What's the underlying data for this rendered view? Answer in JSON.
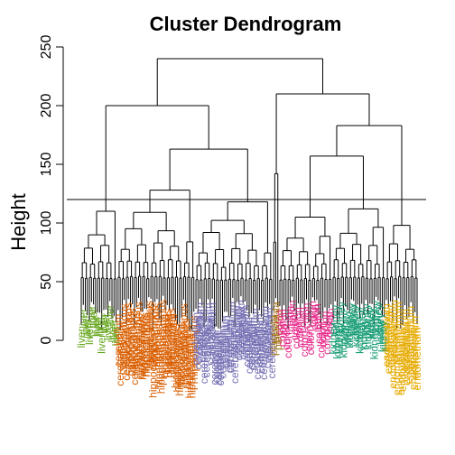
{
  "chart_data": {
    "type": "dendrogram",
    "title": "Cluster Dendrogram",
    "ylabel": "Height",
    "ylim": [
      0,
      250
    ],
    "yticks": [
      0,
      50,
      100,
      150,
      200,
      250
    ],
    "cut_height": 120,
    "groups": [
      {
        "tissue": "liver",
        "color": "#66a61e",
        "leaves": 18,
        "merge_height": 110,
        "labels": [
          "liver",
          "liver",
          "liver",
          "liver",
          "liver",
          "liver",
          "liver",
          "liver",
          "liver",
          "liver",
          "liver",
          "liver",
          "liver",
          "liver",
          "liver",
          "liver",
          "liver",
          "liver"
        ]
      },
      {
        "tissue": "cerebellum",
        "color": "#d95f02",
        "leaves": 38,
        "merge_height": 128,
        "labels": [
          "cerebellum",
          "cerebellum",
          "cerebellum",
          "hippocampus",
          "cerebellum",
          "hippocampus",
          "hippocampus",
          "hippocampus",
          "cerebellum",
          "hippocampus",
          "hippocampus",
          "hippocampus",
          "hippocampus",
          "hippocampus",
          "hippocampus",
          "hippocampus",
          "hippocampus",
          "hippocampus",
          "hippocampus",
          "hippocampus",
          "hippocampus",
          "hippocampus",
          "hippocampus",
          "hippocampus",
          "hippocampus",
          "hippocampus",
          "hippocampus",
          "hippocampus",
          "hippocampus",
          "hippocampus",
          "hippocampus",
          "hippocampus",
          "hippocampus",
          "hippocampus",
          "hippocampus",
          "hippocampus",
          "hippocampus",
          "hippocampus"
        ]
      },
      {
        "tissue": "cerebellum",
        "color": "#7570b3",
        "leaves": 38,
        "merge_height": 118,
        "labels": [
          "cerebellum",
          "cerebellum",
          "cerebellum",
          "cerebellum",
          "cerebellum",
          "cerebellum",
          "cerebellum",
          "cerebellum",
          "cerebellum",
          "cerebellum",
          "cerebellum",
          "cerebellum",
          "cerebellum",
          "cerebellum",
          "cerebellum",
          "cerebellum",
          "cerebellum",
          "cerebellum",
          "cerebellum",
          "cerebellum",
          "cerebellum",
          "cerebellum",
          "cerebellum",
          "cerebellum",
          "cerebellum",
          "cerebellum",
          "cerebellum",
          "cerebellum",
          "cerebellum",
          "cerebellum",
          "cerebellum",
          "cerebellum",
          "cerebellum",
          "cerebellum",
          "cerebellum",
          "cerebellum",
          "cerebellum",
          "cerebellum"
        ]
      },
      {
        "tissue": "placenta",
        "color": "#a6761d",
        "leaves": 3,
        "merge_height": 142,
        "labels": [
          "placenta",
          "placenta",
          "placenta"
        ]
      },
      {
        "tissue": "colon",
        "color": "#e7298a",
        "leaves": 26,
        "merge_height": 105,
        "labels": [
          "colon",
          "colon",
          "colon",
          "colon",
          "colon",
          "colon",
          "colon",
          "colon",
          "colon",
          "colon",
          "colon",
          "colon",
          "colon",
          "colon",
          "colon",
          "colon",
          "colon",
          "colon",
          "colon",
          "colon",
          "colon",
          "colon",
          "colon",
          "colon",
          "colon",
          "colon"
        ]
      },
      {
        "tissue": "kidney",
        "color": "#1b9e77",
        "leaves": 26,
        "merge_height": 112,
        "labels": [
          "kidney",
          "kidney",
          "kidney",
          "kidney",
          "kidney",
          "kidney",
          "kidney",
          "kidney",
          "kidney",
          "kidney",
          "kidney",
          "kidney",
          "kidney",
          "kidney",
          "kidney",
          "kidney",
          "kidney",
          "kidney",
          "kidney",
          "kidney",
          "kidney",
          "kidney",
          "kidney",
          "kidney",
          "kidney",
          "kidney"
        ]
      },
      {
        "tissue": "endometrium",
        "color": "#e6ab02",
        "leaves": 16,
        "merge_height": 98,
        "labels": [
          "endometrium",
          "endometrium",
          "endometrium",
          "endometrium",
          "endometrium",
          "endometrium",
          "endometrium",
          "endometrium",
          "endometrium",
          "endometrium",
          "endometrium",
          "endometrium",
          "endometrium",
          "endometrium",
          "endometrium",
          "endometrium"
        ]
      }
    ],
    "top_merges": [
      {
        "left": [
          1,
          2
        ],
        "height": 163
      },
      {
        "left": [
          0,
          1
        ],
        "height": 200
      },
      {
        "left": [
          4,
          5
        ],
        "height": 157
      },
      {
        "left": [
          4,
          6
        ],
        "height": 183
      },
      {
        "left": [
          3,
          4
        ],
        "height": 210
      },
      {
        "left": [
          0,
          3
        ],
        "height": 240
      }
    ]
  }
}
